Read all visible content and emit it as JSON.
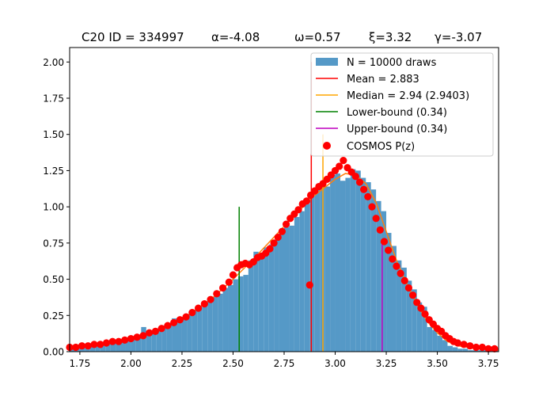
{
  "chart_data": {
    "type": "bar",
    "title": "C20 ID = 334997    α=-4.08        ω=0.57       ξ=3.32     γ=-3.07",
    "title_parts": [
      "C20 ID = 334997",
      "α=-4.08",
      "ω=0.57",
      "ξ=3.32",
      "γ=-3.07"
    ],
    "xlabel": "",
    "ylabel": "",
    "xlim": [
      1.7,
      3.8
    ],
    "ylim": [
      0,
      2.1
    ],
    "xticks": [
      "1.75",
      "2.00",
      "2.25",
      "2.50",
      "2.75",
      "3.00",
      "3.25",
      "3.50",
      "3.75"
    ],
    "yticks": [
      "0.00",
      "0.25",
      "0.50",
      "0.75",
      "1.00",
      "1.25",
      "1.50",
      "1.75",
      "2.00"
    ],
    "grid": false,
    "legend_position": "top-right",
    "colors": {
      "histogram": "#5599c7",
      "mean": "#ff0000",
      "median": "#ffa500",
      "lower": "#008000",
      "upper": "#bf00bf",
      "cosmos": "#ff0000",
      "fit": "#ff7f0e"
    },
    "legend": [
      {
        "key": "hist",
        "label": "N = 10000 draws",
        "marker": "patch"
      },
      {
        "key": "mean",
        "label": "Mean = 2.883",
        "marker": "line"
      },
      {
        "key": "median",
        "label": "Median = 2.94    (2.9403)",
        "marker": "line"
      },
      {
        "key": "lower",
        "label": "Lower-bound  (0.34)",
        "marker": "line"
      },
      {
        "key": "upper",
        "label": "Upper-bound  (0.34)",
        "marker": "line"
      },
      {
        "key": "cosmos",
        "label": "COSMOS P(z)",
        "marker": "dot"
      }
    ],
    "histogram": {
      "bin_width": 0.025,
      "bins": [
        [
          1.7,
          0.03
        ],
        [
          1.725,
          0.04
        ],
        [
          1.75,
          0.04
        ],
        [
          1.775,
          0.04
        ],
        [
          1.8,
          0.05
        ],
        [
          1.825,
          0.05
        ],
        [
          1.85,
          0.06
        ],
        [
          1.875,
          0.06
        ],
        [
          1.9,
          0.07
        ],
        [
          1.925,
          0.07
        ],
        [
          1.95,
          0.08
        ],
        [
          1.975,
          0.09
        ],
        [
          2.0,
          0.1
        ],
        [
          2.025,
          0.11
        ],
        [
          2.05,
          0.17
        ],
        [
          2.075,
          0.12
        ],
        [
          2.1,
          0.14
        ],
        [
          2.125,
          0.16
        ],
        [
          2.15,
          0.18
        ],
        [
          2.175,
          0.19
        ],
        [
          2.2,
          0.23
        ],
        [
          2.225,
          0.21
        ],
        [
          2.25,
          0.24
        ],
        [
          2.275,
          0.26
        ],
        [
          2.3,
          0.29
        ],
        [
          2.325,
          0.31
        ],
        [
          2.35,
          0.34
        ],
        [
          2.375,
          0.37
        ],
        [
          2.4,
          0.38
        ],
        [
          2.425,
          0.4
        ],
        [
          2.45,
          0.44
        ],
        [
          2.475,
          0.46
        ],
        [
          2.5,
          0.5
        ],
        [
          2.525,
          0.52
        ],
        [
          2.55,
          0.53
        ],
        [
          2.575,
          0.63
        ],
        [
          2.6,
          0.69
        ],
        [
          2.625,
          0.68
        ],
        [
          2.65,
          0.72
        ],
        [
          2.675,
          0.74
        ],
        [
          2.7,
          0.77
        ],
        [
          2.725,
          0.82
        ],
        [
          2.75,
          0.86
        ],
        [
          2.775,
          0.87
        ],
        [
          2.8,
          0.93
        ],
        [
          2.825,
          0.97
        ],
        [
          2.85,
          1.02
        ],
        [
          2.875,
          1.1
        ],
        [
          2.9,
          1.13
        ],
        [
          2.925,
          1.15
        ],
        [
          2.95,
          1.14
        ],
        [
          2.975,
          1.22
        ],
        [
          3.0,
          1.23
        ],
        [
          3.025,
          1.18
        ],
        [
          3.05,
          1.2
        ],
        [
          3.075,
          1.26
        ],
        [
          3.1,
          1.25
        ],
        [
          3.125,
          1.2
        ],
        [
          3.15,
          1.17
        ],
        [
          3.175,
          1.12
        ],
        [
          3.2,
          1.04
        ],
        [
          3.225,
          0.97
        ],
        [
          3.25,
          0.82
        ],
        [
          3.275,
          0.73
        ],
        [
          3.3,
          0.63
        ],
        [
          3.325,
          0.58
        ],
        [
          3.35,
          0.49
        ],
        [
          3.375,
          0.43
        ],
        [
          3.4,
          0.34
        ],
        [
          3.425,
          0.31
        ],
        [
          3.45,
          0.17
        ],
        [
          3.475,
          0.15
        ],
        [
          3.5,
          0.11
        ],
        [
          3.525,
          0.08
        ],
        [
          3.55,
          0.04
        ],
        [
          3.575,
          0.03
        ],
        [
          3.6,
          0.02
        ],
        [
          3.625,
          0.02
        ],
        [
          3.65,
          0.01
        ],
        [
          3.675,
          0.01
        ],
        [
          3.7,
          0.01
        ],
        [
          3.725,
          0.01
        ],
        [
          3.75,
          0.01
        ],
        [
          3.775,
          0.01
        ]
      ]
    },
    "vlines": [
      {
        "key": "mean",
        "x": 2.883,
        "y_top": 2.0
      },
      {
        "key": "median",
        "x": 2.94,
        "y_top": 1.5
      },
      {
        "key": "lower",
        "x": 2.53,
        "y_top": 1.0
      },
      {
        "key": "upper",
        "x": 3.23,
        "y_top": 0.75
      }
    ],
    "fit_curve": [
      [
        1.7,
        0.02
      ],
      [
        1.8,
        0.04
      ],
      [
        1.9,
        0.06
      ],
      [
        2.0,
        0.09
      ],
      [
        2.1,
        0.13
      ],
      [
        2.2,
        0.19
      ],
      [
        2.3,
        0.27
      ],
      [
        2.4,
        0.37
      ],
      [
        2.5,
        0.5
      ],
      [
        2.6,
        0.64
      ],
      [
        2.7,
        0.79
      ],
      [
        2.8,
        0.94
      ],
      [
        2.9,
        1.08
      ],
      [
        3.0,
        1.19
      ],
      [
        3.05,
        1.23
      ],
      [
        3.1,
        1.22
      ],
      [
        3.15,
        1.16
      ],
      [
        3.2,
        1.03
      ],
      [
        3.25,
        0.83
      ],
      [
        3.3,
        0.63
      ],
      [
        3.35,
        0.47
      ],
      [
        3.4,
        0.33
      ],
      [
        3.45,
        0.21
      ],
      [
        3.5,
        0.13
      ],
      [
        3.55,
        0.07
      ],
      [
        3.6,
        0.04
      ],
      [
        3.7,
        0.02
      ],
      [
        3.8,
        0.01
      ]
    ],
    "cosmos_pz": [
      [
        1.7,
        0.03
      ],
      [
        1.73,
        0.03
      ],
      [
        1.76,
        0.04
      ],
      [
        1.79,
        0.04
      ],
      [
        1.82,
        0.05
      ],
      [
        1.85,
        0.05
      ],
      [
        1.88,
        0.06
      ],
      [
        1.91,
        0.07
      ],
      [
        1.94,
        0.07
      ],
      [
        1.97,
        0.08
      ],
      [
        2.0,
        0.09
      ],
      [
        2.03,
        0.1
      ],
      [
        2.06,
        0.11
      ],
      [
        2.09,
        0.13
      ],
      [
        2.12,
        0.14
      ],
      [
        2.15,
        0.16
      ],
      [
        2.18,
        0.18
      ],
      [
        2.21,
        0.2
      ],
      [
        2.24,
        0.22
      ],
      [
        2.27,
        0.24
      ],
      [
        2.3,
        0.27
      ],
      [
        2.33,
        0.3
      ],
      [
        2.36,
        0.33
      ],
      [
        2.39,
        0.36
      ],
      [
        2.42,
        0.4
      ],
      [
        2.45,
        0.44
      ],
      [
        2.48,
        0.48
      ],
      [
        2.5,
        0.53
      ],
      [
        2.52,
        0.58
      ],
      [
        2.54,
        0.6
      ],
      [
        2.56,
        0.61
      ],
      [
        2.58,
        0.6
      ],
      [
        2.6,
        0.62
      ],
      [
        2.62,
        0.65
      ],
      [
        2.64,
        0.66
      ],
      [
        2.66,
        0.68
      ],
      [
        2.68,
        0.71
      ],
      [
        2.7,
        0.75
      ],
      [
        2.72,
        0.79
      ],
      [
        2.74,
        0.83
      ],
      [
        2.76,
        0.88
      ],
      [
        2.78,
        0.92
      ],
      [
        2.8,
        0.95
      ],
      [
        2.82,
        0.98
      ],
      [
        2.84,
        1.02
      ],
      [
        2.86,
        1.04
      ],
      [
        2.875,
        0.46
      ],
      [
        2.88,
        1.08
      ],
      [
        2.9,
        1.11
      ],
      [
        2.92,
        1.14
      ],
      [
        2.94,
        1.16
      ],
      [
        2.96,
        1.19
      ],
      [
        2.98,
        1.22
      ],
      [
        3.0,
        1.25
      ],
      [
        3.02,
        1.28
      ],
      [
        3.04,
        1.32
      ],
      [
        3.06,
        1.27
      ],
      [
        3.08,
        1.24
      ],
      [
        3.1,
        1.21
      ],
      [
        3.12,
        1.17
      ],
      [
        3.14,
        1.12
      ],
      [
        3.16,
        1.07
      ],
      [
        3.18,
        1.0
      ],
      [
        3.2,
        0.92
      ],
      [
        3.22,
        0.84
      ],
      [
        3.24,
        0.76
      ],
      [
        3.26,
        0.7
      ],
      [
        3.28,
        0.64
      ],
      [
        3.3,
        0.59
      ],
      [
        3.32,
        0.54
      ],
      [
        3.34,
        0.49
      ],
      [
        3.36,
        0.44
      ],
      [
        3.38,
        0.39
      ],
      [
        3.4,
        0.34
      ],
      [
        3.42,
        0.3
      ],
      [
        3.44,
        0.26
      ],
      [
        3.46,
        0.22
      ],
      [
        3.48,
        0.19
      ],
      [
        3.5,
        0.16
      ],
      [
        3.52,
        0.14
      ],
      [
        3.54,
        0.11
      ],
      [
        3.56,
        0.09
      ],
      [
        3.58,
        0.07
      ],
      [
        3.6,
        0.06
      ],
      [
        3.63,
        0.05
      ],
      [
        3.66,
        0.04
      ],
      [
        3.69,
        0.03
      ],
      [
        3.72,
        0.03
      ],
      [
        3.75,
        0.02
      ],
      [
        3.78,
        0.02
      ]
    ]
  }
}
